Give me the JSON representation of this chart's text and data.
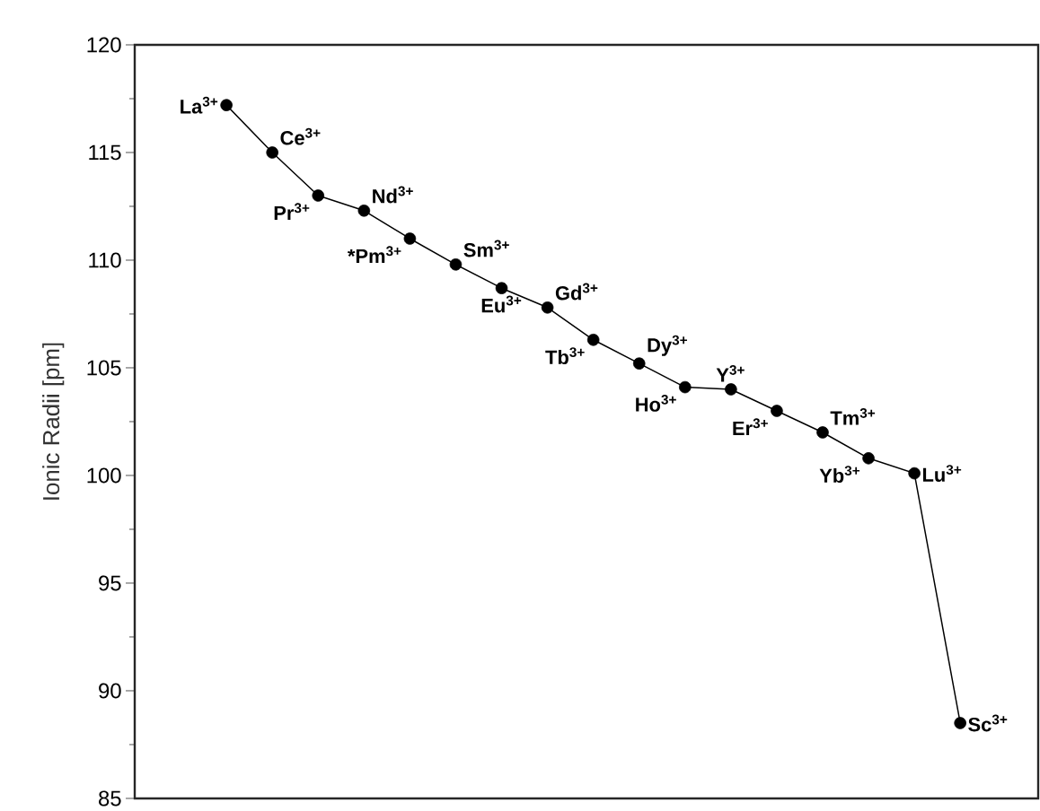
{
  "chart_data": {
    "type": "line",
    "ylabel": "Ionic Radii [pm]",
    "categories": [
      null,
      null,
      null,
      null,
      null,
      null,
      null,
      null,
      null,
      null,
      null,
      null,
      null,
      null,
      null,
      null,
      null
    ],
    "values": [
      117.2,
      115.0,
      113.0,
      112.3,
      111.0,
      109.8,
      108.7,
      107.8,
      106.3,
      105.2,
      104.1,
      104.0,
      103.0,
      102.0,
      100.8,
      100.1,
      88.5
    ],
    "color": "#000000",
    "marker": "circle",
    "ylim": [
      85,
      120
    ],
    "yticks": [
      {
        "value": 85,
        "label": "85"
      },
      {
        "value": 90,
        "label": "90"
      },
      {
        "value": 95,
        "label": "95"
      },
      {
        "value": 100,
        "label": "100"
      },
      {
        "value": 105,
        "label": "105"
      },
      {
        "value": 110,
        "label": "110"
      },
      {
        "value": 115,
        "label": "115"
      },
      {
        "value": 120,
        "label": "120"
      }
    ],
    "tick_labels": "y",
    "annotations": [
      "La$^{3+}$",
      "Ce$^{3+}$",
      "Pr$^{3+}$",
      "Nd$^{3+}$",
      "*Pm$^{3+}$",
      "Sm$^{3+}$",
      "Eu$^{3+}$",
      "Gd$^{3+}$",
      "Tb$^{3+}$",
      "Dy$^{3+}$",
      "Ho$^{3+}$",
      "Y$^{3+}$",
      "Er$^{3+}$",
      "Tm$^{3+}$",
      "Yb$^{3+}$",
      "Lu$^{3+}$",
      "Sc$^{3+}$"
    ]
  }
}
